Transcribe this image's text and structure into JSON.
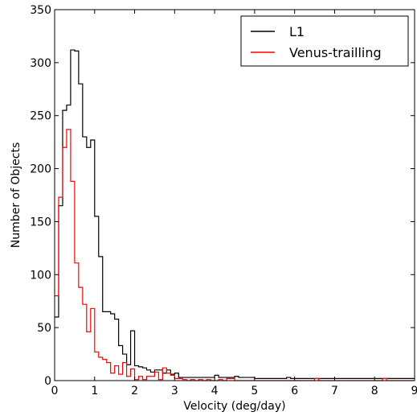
{
  "chart_data": {
    "type": "step",
    "xlabel": "Velocity (deg/day)",
    "ylabel": "Number of Objects",
    "xlim": [
      0,
      9
    ],
    "ylim": [
      0,
      350
    ],
    "xticks": [
      0,
      1,
      2,
      3,
      4,
      5,
      6,
      7,
      8,
      9
    ],
    "yticks": [
      0,
      50,
      100,
      150,
      200,
      250,
      300,
      350
    ],
    "legend_position": "top-right",
    "grid": false,
    "bin_width": 0.1,
    "series": [
      {
        "name": "L1",
        "color": "#000000",
        "bin_start": 0,
        "values": [
          60,
          165,
          255,
          260,
          312,
          311,
          280,
          230,
          220,
          227,
          155,
          117,
          65,
          65,
          63,
          58,
          33,
          25,
          15,
          47,
          14,
          13,
          12,
          10,
          8,
          10,
          10,
          7,
          10,
          6,
          7,
          3,
          3,
          3,
          3,
          3,
          3,
          3,
          3,
          3,
          5,
          3,
          3,
          3,
          3,
          4,
          3,
          3,
          3,
          3,
          2,
          2,
          2,
          2,
          2,
          2,
          2,
          2,
          3,
          2,
          2,
          2,
          2,
          2,
          2,
          2,
          2,
          2,
          2,
          2,
          2,
          2,
          2,
          2,
          2,
          2,
          2,
          2,
          2,
          2,
          2,
          2,
          2,
          2,
          2,
          2,
          2,
          2,
          2,
          2
        ]
      },
      {
        "name": "Venus-trailling",
        "color": "#ff0000",
        "bin_start": 0,
        "values": [
          80,
          173,
          220,
          237,
          188,
          111,
          88,
          72,
          46,
          68,
          27,
          22,
          20,
          17,
          7,
          14,
          6,
          17,
          4,
          11,
          1,
          4,
          1,
          4,
          4,
          8,
          1,
          12,
          7,
          5,
          2,
          2,
          1,
          0,
          1,
          0,
          1,
          0,
          1,
          0,
          0,
          1,
          0,
          2,
          2,
          0,
          0,
          0,
          0,
          0,
          0,
          0,
          0,
          0,
          0,
          0,
          0,
          0,
          0,
          0,
          0,
          0,
          0,
          0,
          0,
          2,
          0,
          0,
          0,
          0,
          0,
          0,
          0,
          0,
          0,
          0,
          0,
          0,
          0,
          0,
          0,
          0,
          2,
          0,
          0,
          0,
          0,
          0,
          0,
          0
        ]
      }
    ]
  }
}
